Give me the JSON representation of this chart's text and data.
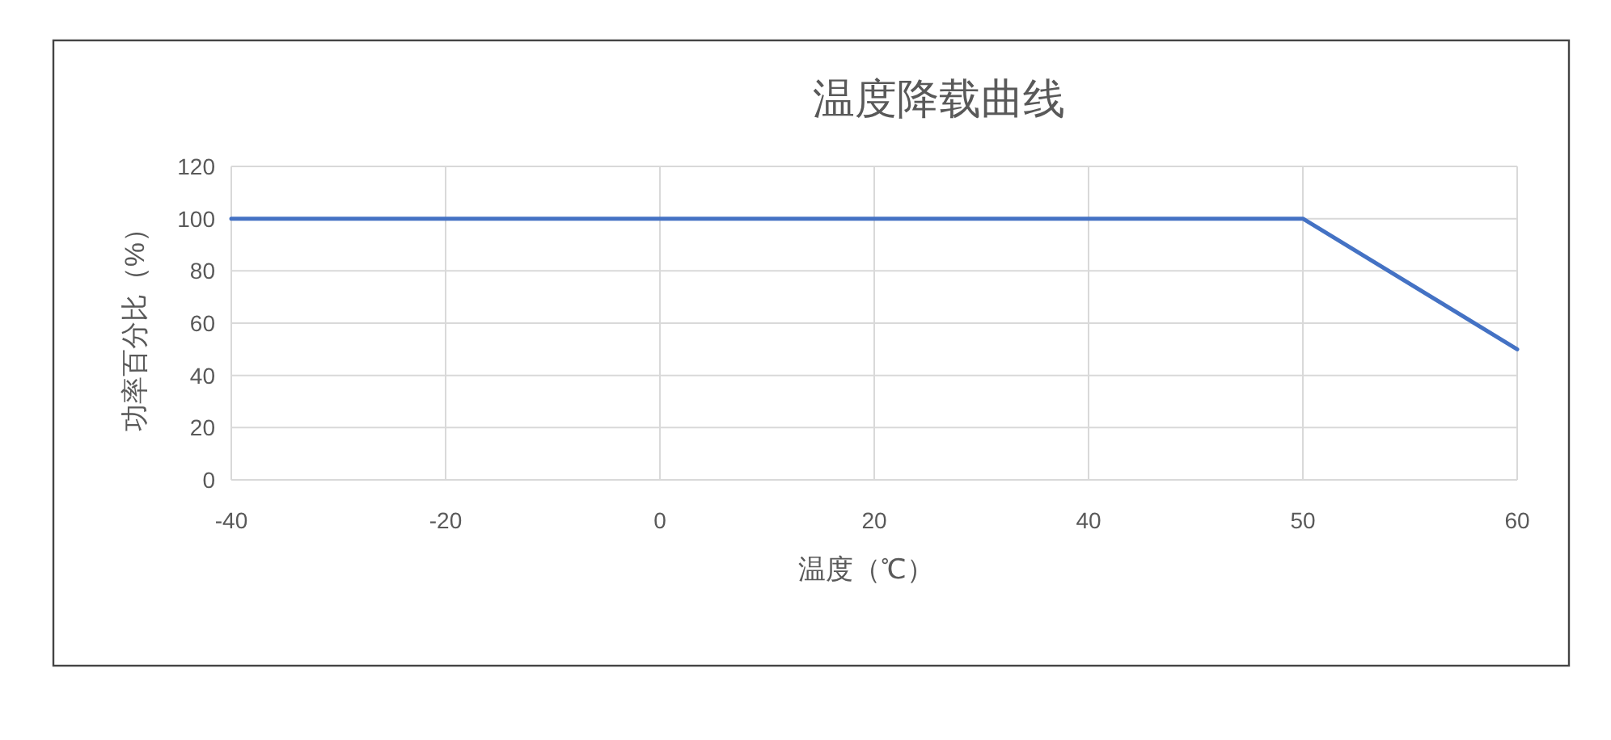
{
  "chart_data": {
    "type": "line",
    "title": "温度降载曲线",
    "xlabel": "温度（℃）",
    "ylabel": "功率百分比（%）",
    "categories": [
      "-40",
      "-20",
      "0",
      "20",
      "40",
      "50",
      "60"
    ],
    "series": [
      {
        "color": "#4472c4",
        "values": [
          100,
          100,
          100,
          100,
          100,
          100,
          50
        ]
      }
    ],
    "ylim": [
      0,
      120
    ],
    "yticks": [
      0,
      20,
      40,
      60,
      80,
      100,
      120
    ],
    "grid": true,
    "marker": "none",
    "line_style": "solid"
  }
}
